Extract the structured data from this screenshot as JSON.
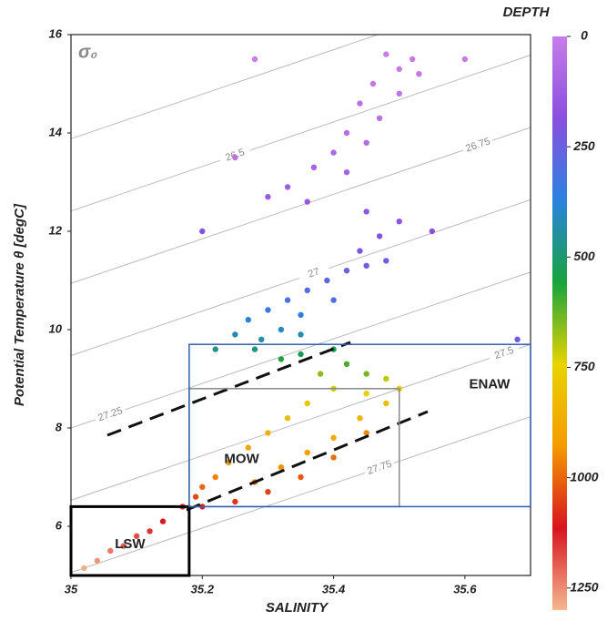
{
  "chart_data": {
    "type": "scatter",
    "title": "DEPTH",
    "x_label": "SALINITY",
    "y_label": "Potential Temperature θ [degC]",
    "isopycnal_label": "σ₀",
    "xlim": [
      35,
      35.7
    ],
    "ylim": [
      5,
      16
    ],
    "xticks": [
      35,
      35.2,
      35.4,
      35.6
    ],
    "yticks": [
      6,
      8,
      10,
      12,
      14,
      16
    ],
    "isopycnals": [
      26.25,
      26.5,
      26.75,
      27,
      27.25,
      27.5,
      27.75
    ],
    "clim": [
      0,
      1300
    ],
    "cticks": [
      0,
      250,
      500,
      750,
      1000,
      1250
    ],
    "colormap": [
      "#c77de8",
      "#8a4fe0",
      "#2a82e0",
      "#17a33c",
      "#e8d400",
      "#f59a00",
      "#d8141e",
      "#f4b890"
    ],
    "regions": [
      {
        "label": "LSW",
        "x": [
          35,
          35.18
        ],
        "y": [
          5,
          6.4
        ],
        "color": "#000000"
      },
      {
        "label": "MOW",
        "x": [
          35.18,
          35.5
        ],
        "y": [
          6.4,
          8.8
        ],
        "color": "#888888"
      },
      {
        "label": "ENAW",
        "x": [
          35.18,
          35.7
        ],
        "y": [
          6.4,
          9.7
        ],
        "color": "#2f5fb3"
      }
    ],
    "x": [
      35.48,
      35.5,
      35.52,
      35.46,
      35.5,
      35.53,
      35.44,
      35.47,
      35.42,
      35.4,
      35.45,
      35.37,
      35.42,
      35.33,
      35.3,
      35.36,
      35.45,
      35.5,
      35.55,
      35.47,
      35.44,
      35.48,
      35.42,
      35.39,
      35.45,
      35.36,
      35.33,
      35.4,
      35.3,
      35.35,
      35.27,
      35.32,
      35.25,
      35.29,
      35.35,
      35.22,
      35.28,
      35.35,
      35.4,
      35.32,
      35.42,
      35.45,
      35.38,
      35.48,
      35.4,
      35.45,
      35.5,
      35.36,
      35.48,
      35.33,
      35.44,
      35.3,
      35.4,
      35.27,
      35.36,
      35.24,
      35.32,
      35.45,
      35.22,
      35.28,
      35.4,
      35.2,
      35.35,
      35.19,
      35.3,
      35.25,
      35.17,
      35.2,
      35.14,
      35.12,
      35.1,
      35.08,
      35.06,
      35.04,
      35.02,
      35.28,
      35.6,
      35.25,
      35.2,
      35.68
    ],
    "y": [
      15.6,
      15.3,
      15.5,
      15.0,
      14.8,
      15.2,
      14.6,
      14.3,
      14.0,
      13.6,
      13.8,
      13.3,
      13.2,
      12.9,
      12.7,
      12.6,
      12.4,
      12.2,
      12.0,
      11.9,
      11.6,
      11.4,
      11.2,
      11.0,
      11.3,
      10.8,
      10.6,
      10.6,
      10.4,
      10.3,
      10.2,
      10.0,
      9.9,
      9.8,
      9.9,
      9.6,
      9.6,
      9.5,
      9.6,
      9.4,
      9.3,
      9.1,
      9.1,
      9.0,
      8.8,
      8.7,
      8.8,
      8.5,
      8.5,
      8.2,
      8.2,
      7.9,
      7.8,
      7.6,
      7.5,
      7.3,
      7.2,
      7.9,
      7.0,
      6.9,
      7.4,
      6.8,
      7.0,
      6.6,
      6.7,
      6.5,
      6.4,
      6.4,
      6.1,
      5.9,
      5.8,
      5.6,
      5.5,
      5.3,
      5.15,
      15.5,
      15.5,
      13.5,
      12.0,
      9.8
    ],
    "depth": [
      0,
      10,
      5,
      20,
      30,
      15,
      40,
      50,
      60,
      80,
      70,
      100,
      110,
      130,
      140,
      150,
      160,
      170,
      180,
      190,
      210,
      230,
      250,
      270,
      240,
      290,
      310,
      300,
      340,
      360,
      380,
      400,
      420,
      440,
      430,
      470,
      490,
      520,
      540,
      560,
      600,
      640,
      660,
      700,
      720,
      760,
      780,
      790,
      820,
      820,
      850,
      860,
      880,
      890,
      910,
      920,
      940,
      950,
      960,
      980,
      990,
      1000,
      1020,
      1040,
      1050,
      1070,
      1080,
      1100,
      1120,
      1150,
      1180,
      1200,
      1230,
      1260,
      1290,
      0,
      0,
      40,
      200,
      230
    ]
  }
}
